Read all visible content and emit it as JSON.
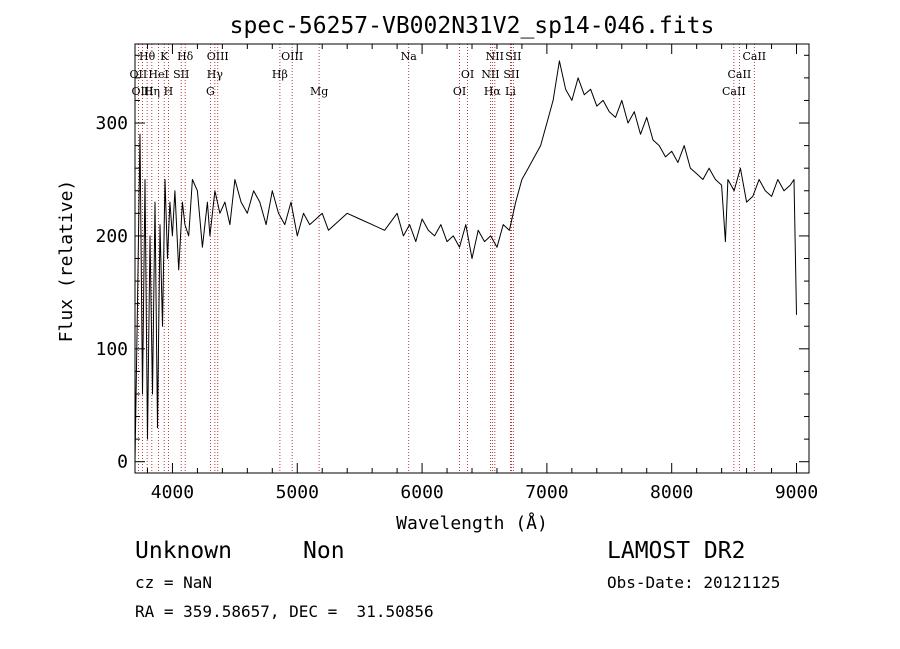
{
  "chart_data": {
    "type": "line",
    "title": "spec-56257-VB002N31V2_sp14-046.fits",
    "xlabel": "Wavelength (Å)",
    "ylabel": "Flux (relative)",
    "xlim": [
      3700,
      9100
    ],
    "ylim": [
      -10,
      370
    ],
    "x_ticks": [
      4000,
      5000,
      6000,
      7000,
      8000,
      9000
    ],
    "y_ticks": [
      0,
      100,
      200,
      300
    ],
    "x_minor_step": 200,
    "y_minor_step": 20,
    "grid": false,
    "legend": "none",
    "series": [
      {
        "color": "#000000",
        "x": [
          3700,
          3720,
          3740,
          3760,
          3780,
          3800,
          3820,
          3840,
          3860,
          3880,
          3900,
          3920,
          3940,
          3960,
          3980,
          4000,
          4020,
          4050,
          4080,
          4100,
          4130,
          4160,
          4200,
          4240,
          4280,
          4300,
          4340,
          4380,
          4420,
          4460,
          4500,
          4550,
          4600,
          4650,
          4700,
          4750,
          4800,
          4850,
          4900,
          4950,
          5000,
          5050,
          5100,
          5150,
          5200,
          5250,
          5300,
          5400,
          5500,
          5600,
          5700,
          5800,
          5850,
          5900,
          5950,
          6000,
          6050,
          6100,
          6150,
          6200,
          6250,
          6300,
          6350,
          6400,
          6450,
          6500,
          6550,
          6600,
          6650,
          6700,
          6750,
          6800,
          6850,
          6900,
          6950,
          7000,
          7050,
          7100,
          7150,
          7200,
          7250,
          7300,
          7350,
          7400,
          7450,
          7500,
          7550,
          7600,
          7650,
          7700,
          7750,
          7800,
          7850,
          7900,
          7950,
          8000,
          8050,
          8100,
          8150,
          8200,
          8250,
          8300,
          8350,
          8400,
          8430,
          8450,
          8500,
          8550,
          8600,
          8650,
          8700,
          8750,
          8800,
          8850,
          8900,
          8950,
          8980,
          9000
        ],
        "y": [
          0,
          140,
          290,
          60,
          250,
          20,
          200,
          60,
          230,
          30,
          210,
          120,
          250,
          180,
          230,
          200,
          240,
          170,
          230,
          210,
          200,
          250,
          240,
          190,
          230,
          200,
          240,
          220,
          230,
          210,
          250,
          230,
          220,
          240,
          230,
          210,
          240,
          220,
          210,
          230,
          200,
          220,
          210,
          215,
          220,
          205,
          210,
          220,
          215,
          210,
          205,
          220,
          200,
          210,
          195,
          215,
          205,
          200,
          210,
          195,
          200,
          190,
          210,
          180,
          205,
          195,
          200,
          190,
          210,
          205,
          230,
          250,
          260,
          270,
          280,
          300,
          320,
          355,
          330,
          320,
          340,
          325,
          330,
          315,
          320,
          310,
          305,
          320,
          300,
          310,
          290,
          305,
          285,
          280,
          270,
          275,
          265,
          280,
          260,
          255,
          250,
          260,
          250,
          245,
          195,
          250,
          240,
          260,
          230,
          235,
          250,
          240,
          235,
          250,
          240,
          245,
          250,
          130
        ]
      }
    ],
    "line_markers": [
      {
        "label": "Hθ",
        "x": 3797
      },
      {
        "label": "OII",
        "x": 3727
      },
      {
        "label": "OIII",
        "x": 3760
      },
      {
        "label": "K",
        "x": 3934
      },
      {
        "label": "HeI",
        "x": 3889
      },
      {
        "label": "Hη",
        "x": 3835
      },
      {
        "label": "Hδ",
        "x": 4102
      },
      {
        "label": "SII",
        "x": 4070
      },
      {
        "label": "H",
        "x": 3968
      },
      {
        "label": "OIII",
        "x": 4363
      },
      {
        "label": "Hγ",
        "x": 4340
      },
      {
        "label": "G",
        "x": 4304
      },
      {
        "label": "OIII",
        "x": 4959
      },
      {
        "label": "Hβ",
        "x": 4861
      },
      {
        "label": "Mg",
        "x": 5175
      },
      {
        "label": "Na",
        "x": 5893
      },
      {
        "label": "OI",
        "x": 6364
      },
      {
        "label": "OI",
        "x": 6300
      },
      {
        "label": "NII",
        "x": 6583
      },
      {
        "label": "SII",
        "x": 6716
      },
      {
        "label": "Hα",
        "x": 6563
      },
      {
        "label": "SII",
        "x": 6731
      },
      {
        "label": "NII",
        "x": 6548
      },
      {
        "label": "Li",
        "x": 6708
      },
      {
        "label": "CaII",
        "x": 8662
      },
      {
        "label": "CaII",
        "x": 8542
      },
      {
        "label": "CaII",
        "x": 8498
      }
    ]
  },
  "info": {
    "classification": "Unknown",
    "subclass": "Non",
    "survey": "LAMOST DR2",
    "redshift": "cz = NaN",
    "obs_date": "Obs-Date: 20121125",
    "coordinates": "RA = 359.58657, DEC =  31.50856"
  }
}
